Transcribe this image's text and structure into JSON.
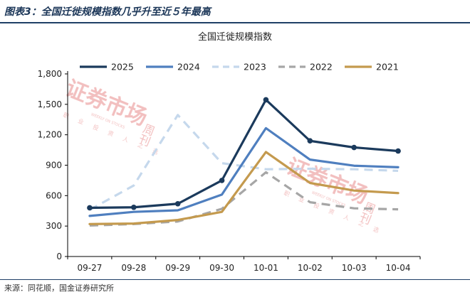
{
  "figure": {
    "title": "图表3：全国迁徙规模指数几乎升至近５年最高",
    "source": "来源：同花顺，国金证券研究所"
  },
  "watermark": {
    "big_text": "证券市场",
    "side_text": "周刊",
    "sub_text": "职 业 投 资 人 之 选",
    "tiny_text": "WEEKLY ON STOCKS"
  },
  "chart_data": {
    "type": "line",
    "title": "全国迁徙规模指数",
    "xlabel": "",
    "ylabel": "",
    "categories": [
      "09-27",
      "09-28",
      "09-29",
      "09-30",
      "10-01",
      "10-02",
      "10-03",
      "10-04"
    ],
    "ylim": [
      0,
      1800
    ],
    "yticks": [
      0,
      300,
      600,
      900,
      1200,
      1500,
      1800
    ],
    "ytick_labels": [
      "0",
      "300",
      "600",
      "900",
      "1,200",
      "1,500",
      "1,800"
    ],
    "grid": false,
    "legend_position": "top",
    "series": [
      {
        "name": "2025",
        "color": "#1b3a5c",
        "dash": "solid",
        "markers": true,
        "values": [
          480,
          485,
          520,
          750,
          1545,
          1140,
          1075,
          1040
        ]
      },
      {
        "name": "2024",
        "color": "#4f7fbf",
        "dash": "solid",
        "markers": false,
        "values": [
          400,
          440,
          455,
          610,
          1265,
          955,
          895,
          880
        ]
      },
      {
        "name": "2023",
        "color": "#c5d8ec",
        "dash": "dashed",
        "markers": false,
        "values": [
          460,
          700,
          1395,
          920,
          860,
          865,
          860,
          845
        ]
      },
      {
        "name": "2022",
        "color": "#a6a6a6",
        "dash": "dashed",
        "markers": false,
        "values": [
          305,
          320,
          345,
          470,
          830,
          535,
          475,
          465
        ]
      },
      {
        "name": "2021",
        "color": "#c49a4e",
        "dash": "solid",
        "markers": false,
        "values": [
          320,
          325,
          360,
          440,
          1030,
          725,
          650,
          625
        ]
      }
    ]
  }
}
